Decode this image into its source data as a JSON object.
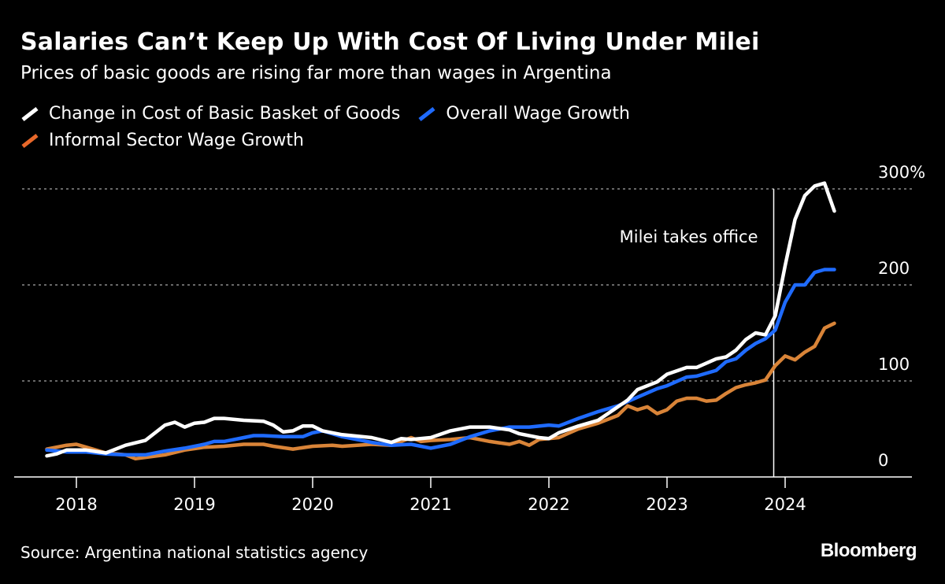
{
  "title": "Salaries Can’t Keep Up With Cost Of Living Under Milei",
  "subtitle": "Prices of basic goods are rising far more than wages in Argentina",
  "source": "Source: Argentina national statistics agency",
  "logo": "Bloomberg",
  "chart_data": {
    "type": "line",
    "title": "Salaries Can’t Keep Up With Cost Of Living Under Milei",
    "subtitle": "Prices of basic goods are rising far more than wages in Argentina",
    "xlabel": "",
    "ylabel": "",
    "x_ticks": [
      "2018",
      "2019",
      "2020",
      "2021",
      "2022",
      "2023",
      "2024"
    ],
    "y_ticks": [
      {
        "value": 0,
        "label": "0"
      },
      {
        "value": 100,
        "label": "100"
      },
      {
        "value": 200,
        "label": "200"
      },
      {
        "value": 300,
        "label": "300%"
      }
    ],
    "ylim": [
      0,
      300
    ],
    "xlim": [
      "2017-09",
      "2024-12"
    ],
    "grid": "horizontal dotted",
    "y_axis_side": "right",
    "legend_placement": "top-left",
    "annotation": {
      "label": "Milei takes office",
      "date": "2023-12"
    },
    "series": [
      {
        "name": "Change in Cost of Basic Basket of Goods",
        "color": "#ffffff",
        "points": [
          [
            "2017-10",
            22
          ],
          [
            "2017-11",
            24
          ],
          [
            "2017-12",
            28
          ],
          [
            "2018-02",
            28
          ],
          [
            "2018-04",
            25
          ],
          [
            "2018-06",
            33
          ],
          [
            "2018-08",
            38
          ],
          [
            "2018-10",
            54
          ],
          [
            "2018-11",
            57
          ],
          [
            "2018-12",
            52
          ],
          [
            "2019-01",
            56
          ],
          [
            "2019-02",
            57
          ],
          [
            "2019-03",
            61
          ],
          [
            "2019-04",
            61
          ],
          [
            "2019-06",
            59
          ],
          [
            "2019-08",
            58
          ],
          [
            "2019-09",
            54
          ],
          [
            "2019-10",
            47
          ],
          [
            "2019-11",
            48
          ],
          [
            "2019-12",
            53
          ],
          [
            "2020-01",
            53
          ],
          [
            "2020-02",
            48
          ],
          [
            "2020-04",
            44
          ],
          [
            "2020-07",
            41
          ],
          [
            "2020-09",
            36
          ],
          [
            "2020-10",
            40
          ],
          [
            "2020-11",
            39
          ],
          [
            "2021-01",
            41
          ],
          [
            "2021-03",
            48
          ],
          [
            "2021-05",
            52
          ],
          [
            "2021-07",
            52
          ],
          [
            "2021-09",
            49
          ],
          [
            "2021-10",
            45
          ],
          [
            "2021-12",
            41
          ],
          [
            "2022-01",
            40
          ],
          [
            "2022-02",
            46
          ],
          [
            "2022-04",
            53
          ],
          [
            "2022-06",
            59
          ],
          [
            "2022-07",
            66
          ],
          [
            "2022-09",
            80
          ],
          [
            "2022-10",
            91
          ],
          [
            "2022-12",
            99
          ],
          [
            "2023-01",
            107
          ],
          [
            "2023-03",
            114
          ],
          [
            "2023-04",
            114
          ],
          [
            "2023-06",
            123
          ],
          [
            "2023-07",
            125
          ],
          [
            "2023-08",
            132
          ],
          [
            "2023-09",
            143
          ],
          [
            "2023-10",
            150
          ],
          [
            "2023-11",
            148
          ],
          [
            "2023-12",
            168
          ],
          [
            "2024-01",
            220
          ],
          [
            "2024-02",
            268
          ],
          [
            "2024-03",
            293
          ],
          [
            "2024-04",
            303
          ],
          [
            "2024-05",
            306
          ],
          [
            "2024-06",
            277
          ]
        ]
      },
      {
        "name": "Overall Wage Growth",
        "color": "#1f6bff",
        "points": [
          [
            "2017-10",
            28
          ],
          [
            "2017-12",
            26
          ],
          [
            "2018-02",
            26
          ],
          [
            "2018-04",
            24
          ],
          [
            "2018-06",
            23
          ],
          [
            "2018-08",
            23
          ],
          [
            "2018-10",
            27
          ],
          [
            "2018-12",
            30
          ],
          [
            "2019-02",
            34
          ],
          [
            "2019-03",
            37
          ],
          [
            "2019-04",
            37
          ],
          [
            "2019-06",
            41
          ],
          [
            "2019-07",
            43
          ],
          [
            "2019-08",
            43
          ],
          [
            "2019-10",
            42
          ],
          [
            "2019-12",
            42
          ],
          [
            "2020-01",
            46
          ],
          [
            "2020-02",
            48
          ],
          [
            "2020-04",
            42
          ],
          [
            "2020-07",
            36
          ],
          [
            "2020-09",
            33
          ],
          [
            "2020-11",
            34
          ],
          [
            "2021-01",
            30
          ],
          [
            "2021-03",
            34
          ],
          [
            "2021-05",
            42
          ],
          [
            "2021-07",
            48
          ],
          [
            "2021-09",
            52
          ],
          [
            "2021-11",
            52
          ],
          [
            "2022-01",
            54
          ],
          [
            "2022-02",
            53
          ],
          [
            "2022-04",
            61
          ],
          [
            "2022-06",
            68
          ],
          [
            "2022-08",
            74
          ],
          [
            "2022-10",
            83
          ],
          [
            "2022-12",
            92
          ],
          [
            "2023-01",
            95
          ],
          [
            "2023-03",
            104
          ],
          [
            "2023-04",
            105
          ],
          [
            "2023-06",
            111
          ],
          [
            "2023-07",
            120
          ],
          [
            "2023-08",
            123
          ],
          [
            "2023-09",
            132
          ],
          [
            "2023-10",
            139
          ],
          [
            "2023-11",
            144
          ],
          [
            "2023-12",
            153
          ],
          [
            "2024-01",
            182
          ],
          [
            "2024-02",
            200
          ],
          [
            "2024-03",
            200
          ],
          [
            "2024-04",
            213
          ],
          [
            "2024-05",
            216
          ],
          [
            "2024-06",
            216
          ]
        ]
      },
      {
        "name": "Informal Sector Wage Growth",
        "color": "#d98438",
        "points": [
          [
            "2017-10",
            29
          ],
          [
            "2017-12",
            33
          ],
          [
            "2018-01",
            34
          ],
          [
            "2018-02",
            31
          ],
          [
            "2018-04",
            25
          ],
          [
            "2018-06",
            23
          ],
          [
            "2018-07",
            19
          ],
          [
            "2018-10",
            23
          ],
          [
            "2018-12",
            28
          ],
          [
            "2019-02",
            31
          ],
          [
            "2019-04",
            32
          ],
          [
            "2019-06",
            34
          ],
          [
            "2019-08",
            34
          ],
          [
            "2019-09",
            32
          ],
          [
            "2019-11",
            29
          ],
          [
            "2020-01",
            32
          ],
          [
            "2020-03",
            33
          ],
          [
            "2020-04",
            32
          ],
          [
            "2020-07",
            34
          ],
          [
            "2020-09",
            33
          ],
          [
            "2020-11",
            41
          ],
          [
            "2020-12",
            37
          ],
          [
            "2021-01",
            38
          ],
          [
            "2021-03",
            39
          ],
          [
            "2021-05",
            41
          ],
          [
            "2021-07",
            37
          ],
          [
            "2021-09",
            34
          ],
          [
            "2021-10",
            37
          ],
          [
            "2021-11",
            33
          ],
          [
            "2021-12",
            39
          ],
          [
            "2022-01",
            40
          ],
          [
            "2022-02",
            41
          ],
          [
            "2022-04",
            50
          ],
          [
            "2022-06",
            56
          ],
          [
            "2022-08",
            64
          ],
          [
            "2022-09",
            74
          ],
          [
            "2022-10",
            70
          ],
          [
            "2022-11",
            73
          ],
          [
            "2022-12",
            66
          ],
          [
            "2023-01",
            70
          ],
          [
            "2023-02",
            79
          ],
          [
            "2023-03",
            82
          ],
          [
            "2023-04",
            82
          ],
          [
            "2023-05",
            79
          ],
          [
            "2023-06",
            80
          ],
          [
            "2023-07",
            87
          ],
          [
            "2023-08",
            93
          ],
          [
            "2023-09",
            96
          ],
          [
            "2023-10",
            98
          ],
          [
            "2023-11",
            101
          ],
          [
            "2023-12",
            116
          ],
          [
            "2024-01",
            126
          ],
          [
            "2024-02",
            122
          ],
          [
            "2024-03",
            130
          ],
          [
            "2024-04",
            136
          ],
          [
            "2024-05",
            155
          ],
          [
            "2024-06",
            160
          ]
        ]
      }
    ]
  }
}
